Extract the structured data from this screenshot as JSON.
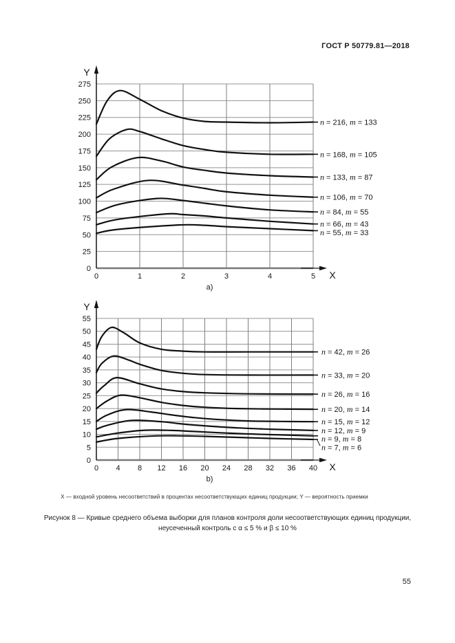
{
  "page": {
    "header": "ГОСТ Р 50779.81—2018",
    "page_number": "55",
    "footnote": "X — входной уровень несоответствий в процентах несоответствующих единиц продукции; Y — вероятность приемки",
    "figure_caption": {
      "line1": "Рисунок 8 — Кривые среднего объема выборки для планов контроля доли несоответствующих единиц продукции,",
      "line2": "неусеченный контроль с α ≤ 5 % и β ≤ 10 %"
    }
  },
  "chart_data": [
    {
      "id": "a",
      "type": "line",
      "sublabel": "a)",
      "xlabel": "X",
      "ylabel": "Y",
      "xlim": [
        0,
        5
      ],
      "ylim": [
        0,
        275
      ],
      "xticks": [
        0,
        1,
        2,
        3,
        4,
        5
      ],
      "yticks": [
        0,
        25,
        50,
        75,
        100,
        125,
        150,
        175,
        200,
        225,
        250,
        275
      ],
      "grid": true,
      "legend_position": "right",
      "series": [
        {
          "label": "n = 216, m = 133",
          "x": [
            0,
            0.25,
            0.55,
            1,
            1.5,
            2,
            2.5,
            3,
            4,
            5
          ],
          "y": [
            215,
            250,
            265,
            252,
            235,
            224,
            219,
            218,
            217,
            218
          ]
        },
        {
          "label": "n = 168, m = 105",
          "x": [
            0,
            0.3,
            0.7,
            1,
            1.5,
            2,
            2.5,
            3,
            4,
            5
          ],
          "y": [
            167,
            193,
            207,
            204,
            193,
            183,
            177,
            173,
            170,
            170
          ]
        },
        {
          "label": "n = 133, m = 87",
          "x": [
            0,
            0.35,
            0.95,
            1.5,
            2,
            2.5,
            3,
            4,
            5
          ],
          "y": [
            132,
            151,
            165,
            160,
            151,
            146,
            142,
            138,
            136
          ]
        },
        {
          "label": "n = 106, m = 70",
          "x": [
            0,
            0.4,
            1.2,
            2,
            2.5,
            3,
            4,
            5
          ],
          "y": [
            105,
            118,
            131,
            124,
            119,
            114,
            109,
            106
          ]
        },
        {
          "label": "n = 84, m = 55",
          "x": [
            0,
            0.5,
            1.4,
            2,
            2.5,
            3,
            4,
            5
          ],
          "y": [
            83,
            95,
            104,
            101,
            97,
            93,
            87,
            84
          ]
        },
        {
          "label": "n = 66, m = 43",
          "x": [
            0,
            0.5,
            1.6,
            2,
            2.5,
            3,
            4,
            5
          ],
          "y": [
            65,
            73,
            81,
            80,
            78,
            75,
            70,
            66
          ]
        },
        {
          "label": "n = 55, m = 33",
          "x": [
            0,
            0.5,
            1.9,
            2.5,
            3,
            4,
            5
          ],
          "y": [
            52,
            58,
            64.5,
            64,
            62,
            59,
            56
          ]
        }
      ]
    },
    {
      "id": "b",
      "type": "line",
      "sublabel": "b)",
      "xlabel": "X",
      "ylabel": "Y",
      "xlim": [
        0,
        40
      ],
      "ylim": [
        0,
        55
      ],
      "xticks": [
        0,
        4,
        8,
        12,
        16,
        20,
        24,
        28,
        32,
        36,
        40
      ],
      "yticks": [
        0,
        5,
        10,
        15,
        20,
        25,
        30,
        35,
        40,
        45,
        50,
        55
      ],
      "grid": true,
      "legend_position": "right",
      "series": [
        {
          "label": "n = 42, m = 26",
          "x": [
            0,
            1,
            2.8,
            5,
            8,
            12,
            16,
            20,
            28,
            40
          ],
          "y": [
            43,
            48,
            51.5,
            49.5,
            45.5,
            43,
            42.3,
            42,
            42,
            42
          ]
        },
        {
          "label": "n = 33, m = 20",
          "x": [
            0,
            1,
            3.2,
            6,
            8,
            12,
            16,
            20,
            28,
            40
          ],
          "y": [
            34,
            37.5,
            40.4,
            38.8,
            37.2,
            34.8,
            33.7,
            33.2,
            33,
            33
          ]
        },
        {
          "label": "n = 26, m = 16",
          "x": [
            0,
            1.5,
            3.8,
            8,
            12,
            16,
            20,
            28,
            40
          ],
          "y": [
            26,
            29,
            32,
            29.6,
            27.6,
            26.6,
            26.1,
            25.7,
            25.6
          ]
        },
        {
          "label": "n = 20, m = 14",
          "x": [
            0,
            2,
            4.5,
            8,
            12,
            16,
            20,
            26,
            34,
            40
          ],
          "y": [
            20,
            23,
            25.2,
            24.2,
            22.4,
            21.2,
            20.5,
            20,
            19.8,
            19.7
          ]
        },
        {
          "label": "n = 15, m = 12",
          "x": [
            0,
            2,
            5.5,
            10,
            14,
            18,
            22,
            28,
            34,
            40
          ],
          "y": [
            15,
            17.5,
            19.6,
            18.7,
            17.5,
            16.5,
            15.8,
            15.2,
            15,
            14.9
          ]
        },
        {
          "label": "n = 12, m = 9",
          "x": [
            0,
            2,
            6.5,
            12,
            16,
            20,
            26,
            32,
            40
          ],
          "y": [
            12,
            13.5,
            15.4,
            14.9,
            14,
            13.3,
            12.5,
            12,
            11.5
          ]
        },
        {
          "label": "n = 9, m = 8",
          "x": [
            0,
            4,
            9,
            14,
            18,
            24,
            30,
            40
          ],
          "y": [
            9,
            10.5,
            11.6,
            11.5,
            11.1,
            10.5,
            10,
            9.4
          ]
        },
        {
          "label": "n = 7, m = 6",
          "x": [
            0,
            4,
            11,
            16,
            20,
            26,
            32,
            40
          ],
          "y": [
            7,
            8.4,
            9.4,
            9.4,
            9.2,
            8.8,
            8.4,
            8
          ]
        }
      ]
    }
  ]
}
